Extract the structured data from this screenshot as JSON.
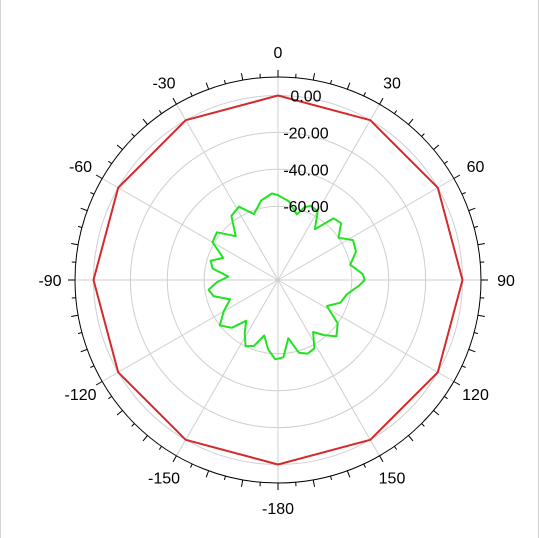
{
  "chart_data": {
    "type": "polar",
    "theta_zero": "top",
    "theta_direction": "clockwise",
    "angular_ticks": [
      0,
      30,
      60,
      90,
      120,
      150,
      -180,
      -150,
      -120,
      -90,
      -60,
      -30
    ],
    "angular_tick_labels": [
      "0",
      "30",
      "60",
      "90",
      "120",
      "150",
      "-180",
      "-150",
      "-120",
      "-90",
      "-60",
      "-30"
    ],
    "radial_ticks": [
      0,
      -20,
      -40,
      -60
    ],
    "radial_tick_labels": [
      "0.00",
      "-20.00",
      "-40.00",
      "-60.00"
    ],
    "rlim": [
      -100,
      10
    ],
    "grid": true,
    "series": [
      {
        "color": "#d42a2a",
        "theta": [
          0,
          30,
          60,
          90,
          120,
          150,
          180,
          210,
          240,
          270,
          300,
          330
        ],
        "r": [
          0,
          0,
          0,
          0,
          0,
          0,
          0,
          0,
          0,
          0,
          0,
          0
        ]
      },
      {
        "color": "#22e322",
        "theta": [
          0,
          8,
          16,
          20,
          24,
          30,
          36,
          42,
          48,
          55,
          62,
          70,
          78,
          86,
          90,
          94,
          102,
          110,
          118,
          126,
          134,
          140,
          146,
          152,
          158,
          164,
          170,
          176,
          182,
          188,
          194,
          200,
          206,
          212,
          218,
          224,
          232,
          240,
          248,
          256,
          262,
          268,
          274,
          280,
          286,
          292,
          300,
          308,
          316,
          324,
          332,
          340,
          348,
          356
        ],
        "r": [
          -54,
          -57,
          -63,
          -58,
          -56,
          -57,
          -66,
          -55,
          -54,
          -60,
          -54,
          -55,
          -60,
          -54,
          -53,
          -56,
          -62,
          -64,
          -70,
          -60,
          -56,
          -61,
          -66,
          -58,
          -57,
          -59,
          -68,
          -58,
          -57,
          -62,
          -69,
          -62,
          -60,
          -66,
          -72,
          -64,
          -60,
          -66,
          -72,
          -64,
          -62,
          -67,
          -73,
          -64,
          -62,
          -68,
          -59,
          -58,
          -67,
          -57,
          -55,
          -62,
          -56,
          -53
        ]
      }
    ]
  }
}
